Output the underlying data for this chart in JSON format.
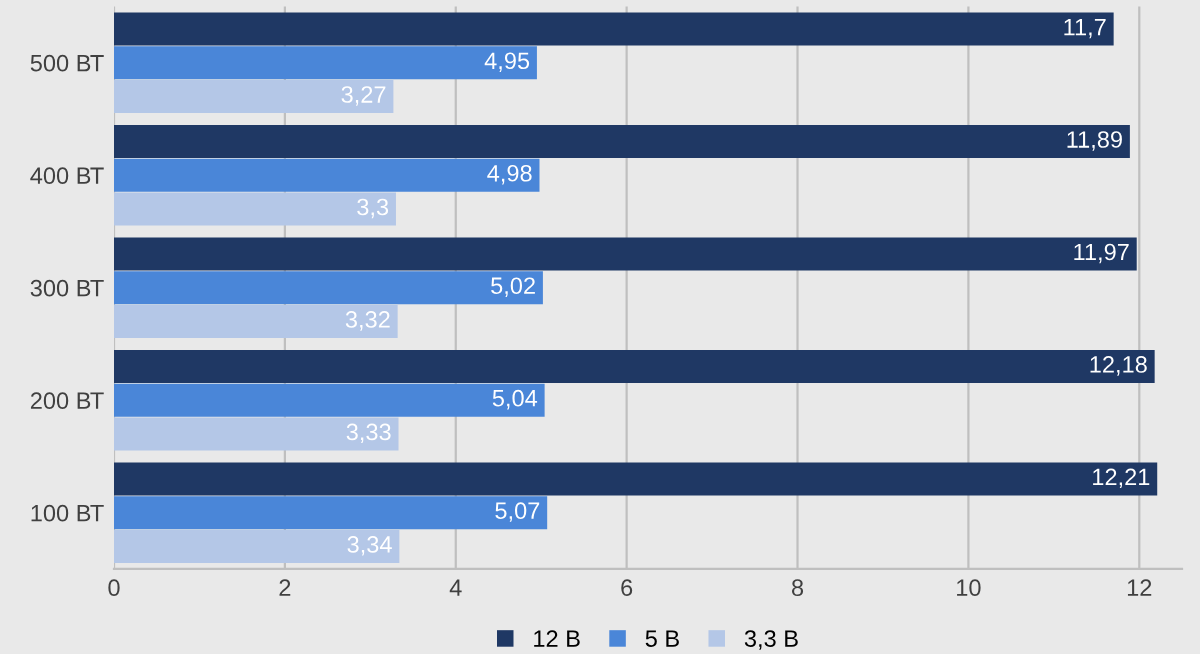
{
  "chart_data": {
    "type": "bar",
    "orientation": "horizontal",
    "categories": [
      "500 ВТ",
      "400 ВТ",
      "300 ВТ",
      "200 ВТ",
      "100 ВТ"
    ],
    "series": [
      {
        "name": "12 В",
        "color": "#1f3864",
        "values": [
          11.7,
          11.89,
          11.97,
          12.18,
          12.21
        ],
        "value_labels": [
          "11,7",
          "11,89",
          "11,97",
          "12,18",
          "12,21"
        ]
      },
      {
        "name": "5 В",
        "color": "#4a86d8",
        "values": [
          4.95,
          4.98,
          5.02,
          5.04,
          5.07
        ],
        "value_labels": [
          "4,95",
          "4,98",
          "5,02",
          "5,04",
          "5,07"
        ]
      },
      {
        "name": "3,3 В",
        "color": "#b4c7e7",
        "values": [
          3.27,
          3.3,
          3.32,
          3.33,
          3.34
        ],
        "value_labels": [
          "3,27",
          "3,3",
          "3,32",
          "3,33",
          "3,34"
        ]
      }
    ],
    "xlim": [
      0,
      12.5
    ],
    "xticks": [
      0,
      2,
      4,
      6,
      8,
      10,
      12
    ],
    "grid": "x",
    "legend": "bottom"
  }
}
